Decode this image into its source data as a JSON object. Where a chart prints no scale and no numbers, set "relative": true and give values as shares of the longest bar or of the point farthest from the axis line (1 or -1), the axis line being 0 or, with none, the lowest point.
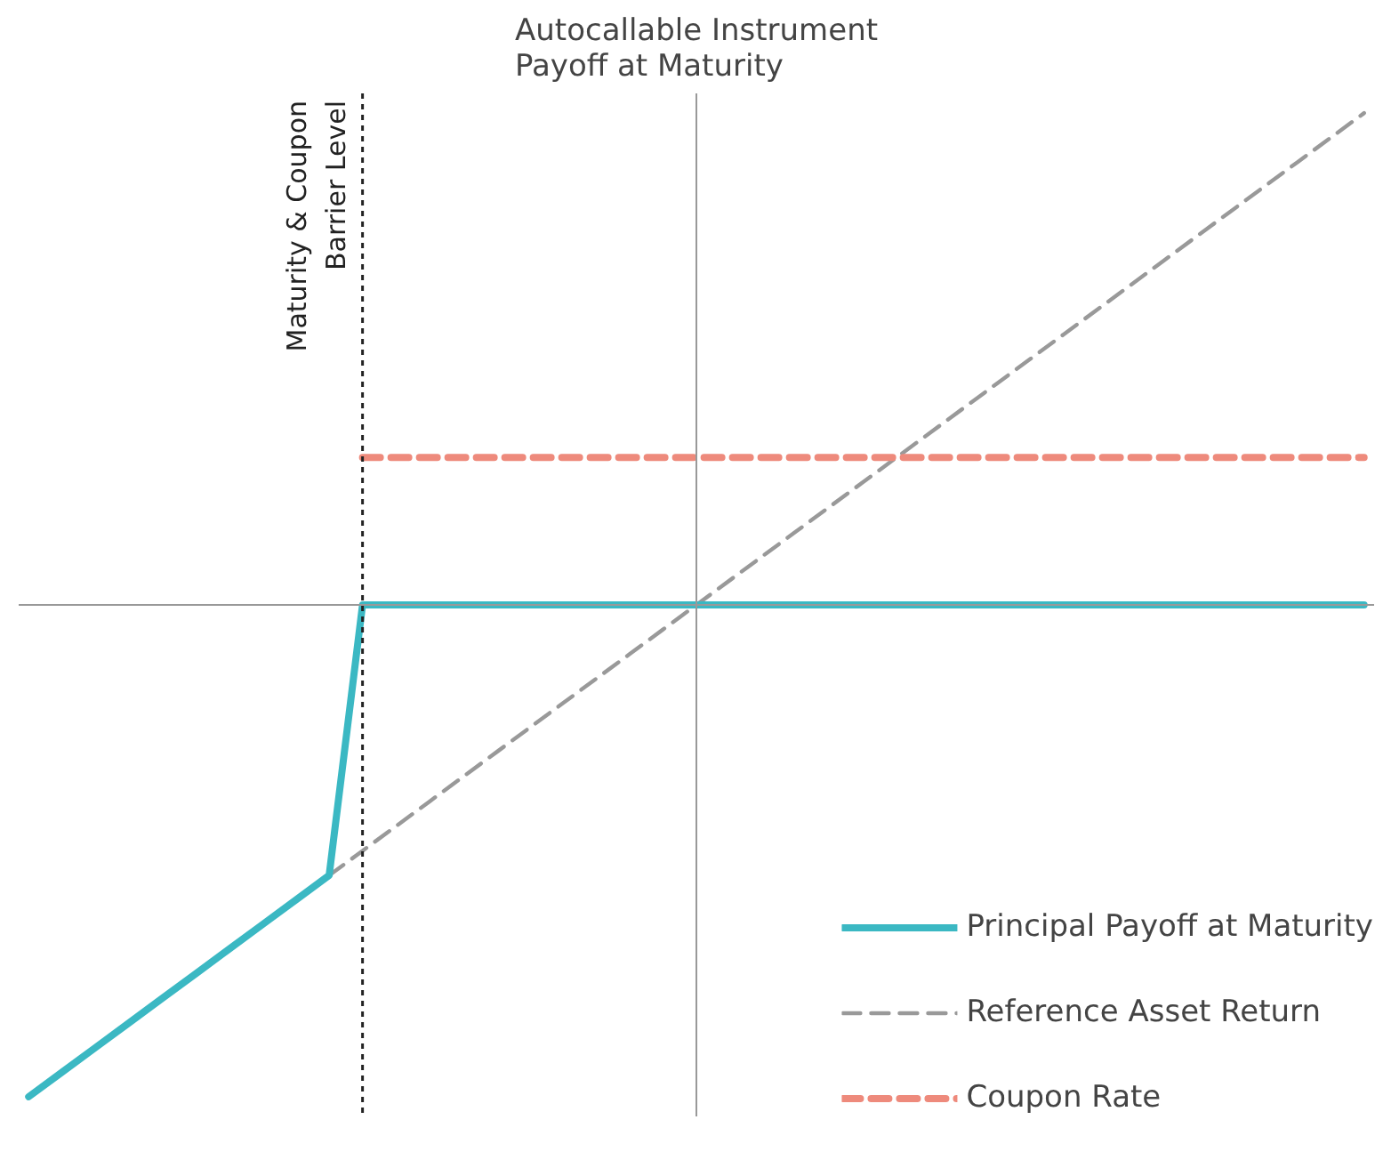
{
  "chart_data": {
    "type": "line",
    "title": "Autocallable Instrument\nPayoff at Maturity",
    "relative": true,
    "grid": false,
    "legend": "bottom right",
    "categories": [
      null,
      null,
      null,
      null,
      null,
      null,
      null,
      null,
      null,
      null,
      null,
      null,
      null,
      null,
      null,
      null,
      null,
      null,
      null,
      null,
      null,
      null,
      null,
      null,
      null,
      null,
      null,
      null,
      null,
      null,
      null,
      null,
      null,
      null,
      null,
      null,
      null,
      null,
      null,
      null,
      null
    ],
    "series": [
      {
        "name": "Principal Payoff at Maturity",
        "color": "#3bb8c3",
        "line_style": "solid",
        "values": [
          -1,
          -0.95,
          -0.9,
          -0.85,
          -0.8,
          -0.75,
          -0.7,
          -0.65,
          -0.6,
          -0.55,
          0,
          0,
          0,
          0,
          0,
          0,
          0,
          0,
          0,
          0,
          0,
          0,
          0,
          0,
          0,
          0,
          0,
          0,
          0,
          0,
          0,
          0,
          0,
          0,
          0,
          0,
          0,
          0,
          0,
          0,
          0
        ]
      },
      {
        "name": "Reference Asset Return",
        "color": "#999999",
        "line_style": "dashed",
        "values": [
          null,
          null,
          null,
          null,
          null,
          null,
          null,
          null,
          null,
          -0.55,
          -0.5,
          -0.45,
          -0.4,
          -0.35,
          -0.3,
          -0.25,
          -0.2,
          -0.15,
          -0.1,
          -0.05,
          0,
          0.05,
          0.1,
          0.15,
          0.2,
          0.25,
          0.3,
          0.35,
          0.4,
          0.45,
          0.5,
          0.55,
          0.6,
          0.65,
          0.7,
          0.75,
          0.8,
          0.85,
          0.9,
          0.95,
          1
        ]
      },
      {
        "name": "Coupon Rate",
        "color": "#ee8a7c",
        "line_style": "dashed",
        "values": [
          null,
          null,
          null,
          null,
          null,
          null,
          null,
          null,
          null,
          null,
          0.3,
          0.3,
          0.3,
          0.3,
          0.3,
          0.3,
          0.3,
          0.3,
          0.3,
          0.3,
          0.3,
          0.3,
          0.3,
          0.3,
          0.3,
          0.3,
          0.3,
          0.3,
          0.3,
          0.3,
          0.3,
          0.3,
          0.3,
          0.3,
          0.3,
          0.3,
          0.3,
          0.3,
          0.3,
          0.3,
          0.3
        ]
      }
    ],
    "annotations": [
      "Maturity & Coupon\nBarrier Level"
    ]
  }
}
